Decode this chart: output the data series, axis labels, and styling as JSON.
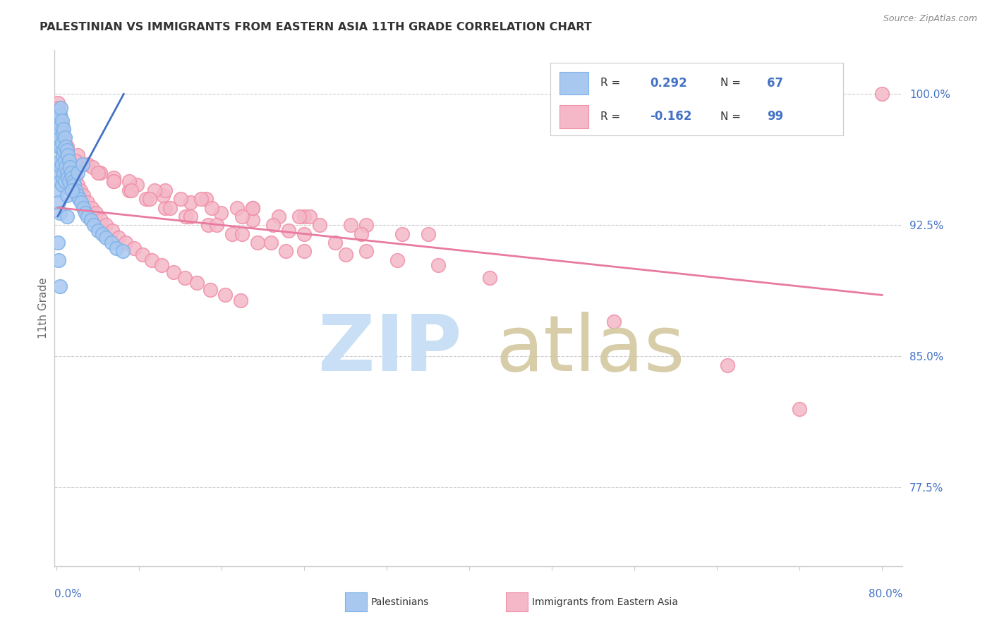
{
  "title": "PALESTINIAN VS IMMIGRANTS FROM EASTERN ASIA 11TH GRADE CORRELATION CHART",
  "source_text": "Source: ZipAtlas.com",
  "ylabel": "11th Grade",
  "blue_R": 0.292,
  "blue_N": 67,
  "pink_R": -0.162,
  "pink_N": 99,
  "blue_color": "#a8c8f0",
  "pink_color": "#f4b8c8",
  "blue_edge_color": "#7eb3e8",
  "pink_edge_color": "#f090a8",
  "blue_line_color": "#4472c4",
  "pink_line_color": "#e87aa0",
  "axis_label_color": "#4472c4",
  "title_color": "#333333",
  "source_color": "#888888",
  "watermark_zip_color": "#c8dff5",
  "watermark_atlas_color": "#d4c8a0",
  "xmin": -0.002,
  "xmax": 0.82,
  "ymin": 73.0,
  "ymax": 102.5,
  "ytick_vals": [
    77.5,
    85.0,
    92.5,
    100.0
  ],
  "ytick_labels": [
    "77.5%",
    "85.0%",
    "92.5%",
    "100.0%"
  ],
  "xtick_vals": [
    0.0,
    0.08,
    0.16,
    0.24,
    0.32,
    0.4,
    0.48,
    0.56,
    0.64,
    0.72,
    0.8
  ],
  "blue_scatter_x": [
    0.001,
    0.001,
    0.001,
    0.001,
    0.002,
    0.002,
    0.002,
    0.002,
    0.002,
    0.003,
    0.003,
    0.003,
    0.003,
    0.003,
    0.004,
    0.004,
    0.004,
    0.004,
    0.005,
    0.005,
    0.005,
    0.005,
    0.006,
    0.006,
    0.006,
    0.007,
    0.007,
    0.007,
    0.008,
    0.008,
    0.008,
    0.009,
    0.009,
    0.01,
    0.01,
    0.01,
    0.011,
    0.011,
    0.012,
    0.012,
    0.013,
    0.014,
    0.015,
    0.016,
    0.017,
    0.018,
    0.02,
    0.022,
    0.024,
    0.026,
    0.028,
    0.03,
    0.033,
    0.036,
    0.04,
    0.044,
    0.048,
    0.053,
    0.058,
    0.064,
    0.001,
    0.002,
    0.003,
    0.02,
    0.025,
    0.01,
    0.015
  ],
  "blue_scatter_y": [
    98.5,
    97.2,
    96.0,
    94.5,
    99.0,
    98.0,
    97.0,
    95.5,
    93.8,
    98.8,
    97.5,
    96.2,
    95.0,
    93.2,
    99.2,
    98.2,
    97.0,
    95.8,
    98.5,
    97.2,
    96.0,
    94.8,
    97.8,
    96.5,
    95.2,
    98.0,
    96.8,
    95.5,
    97.5,
    96.2,
    95.0,
    97.0,
    95.8,
    96.8,
    95.5,
    94.2,
    96.5,
    95.2,
    96.2,
    95.0,
    95.8,
    95.5,
    95.2,
    95.0,
    94.8,
    94.5,
    94.2,
    94.0,
    93.8,
    93.5,
    93.2,
    93.0,
    92.8,
    92.5,
    92.2,
    92.0,
    91.8,
    91.5,
    91.2,
    91.0,
    91.5,
    90.5,
    89.0,
    95.5,
    96.0,
    93.0,
    94.5
  ],
  "pink_scatter_x": [
    0.001,
    0.002,
    0.003,
    0.004,
    0.005,
    0.006,
    0.007,
    0.008,
    0.009,
    0.01,
    0.012,
    0.014,
    0.016,
    0.018,
    0.02,
    0.023,
    0.026,
    0.03,
    0.034,
    0.038,
    0.043,
    0.048,
    0.054,
    0.06,
    0.067,
    0.075,
    0.083,
    0.092,
    0.102,
    0.113,
    0.124,
    0.136,
    0.149,
    0.163,
    0.178,
    0.01,
    0.02,
    0.03,
    0.042,
    0.055,
    0.07,
    0.087,
    0.105,
    0.125,
    0.147,
    0.17,
    0.195,
    0.222,
    0.018,
    0.035,
    0.055,
    0.078,
    0.103,
    0.13,
    0.159,
    0.19,
    0.225,
    0.04,
    0.07,
    0.105,
    0.145,
    0.19,
    0.24,
    0.055,
    0.095,
    0.14,
    0.19,
    0.245,
    0.072,
    0.12,
    0.175,
    0.235,
    0.3,
    0.09,
    0.15,
    0.215,
    0.285,
    0.36,
    0.11,
    0.18,
    0.255,
    0.335,
    0.13,
    0.21,
    0.295,
    0.155,
    0.24,
    0.18,
    0.27,
    0.208,
    0.3,
    0.24,
    0.33,
    0.28,
    0.37,
    0.42,
    0.54,
    0.65,
    0.72,
    0.8
  ],
  "pink_scatter_y": [
    99.5,
    99.2,
    98.8,
    98.5,
    98.2,
    97.8,
    97.5,
    97.2,
    96.8,
    96.5,
    96.2,
    95.8,
    95.5,
    95.2,
    94.8,
    94.5,
    94.2,
    93.8,
    93.5,
    93.2,
    92.8,
    92.5,
    92.2,
    91.8,
    91.5,
    91.2,
    90.8,
    90.5,
    90.2,
    89.8,
    89.5,
    89.2,
    88.8,
    88.5,
    88.2,
    97.0,
    96.5,
    96.0,
    95.5,
    95.0,
    94.5,
    94.0,
    93.5,
    93.0,
    92.5,
    92.0,
    91.5,
    91.0,
    96.2,
    95.8,
    95.2,
    94.8,
    94.2,
    93.8,
    93.2,
    92.8,
    92.2,
    95.5,
    95.0,
    94.5,
    94.0,
    93.5,
    93.0,
    95.0,
    94.5,
    94.0,
    93.5,
    93.0,
    94.5,
    94.0,
    93.5,
    93.0,
    92.5,
    94.0,
    93.5,
    93.0,
    92.5,
    92.0,
    93.5,
    93.0,
    92.5,
    92.0,
    93.0,
    92.5,
    92.0,
    92.5,
    92.0,
    92.0,
    91.5,
    91.5,
    91.0,
    91.0,
    90.5,
    90.8,
    90.2,
    89.5,
    87.0,
    84.5,
    82.0,
    100.0
  ],
  "blue_trendline_x": [
    0.001,
    0.065
  ],
  "blue_trendline_y": [
    93.0,
    100.0
  ],
  "pink_trendline_x": [
    0.001,
    0.8
  ],
  "pink_trendline_y": [
    93.5,
    88.5
  ]
}
